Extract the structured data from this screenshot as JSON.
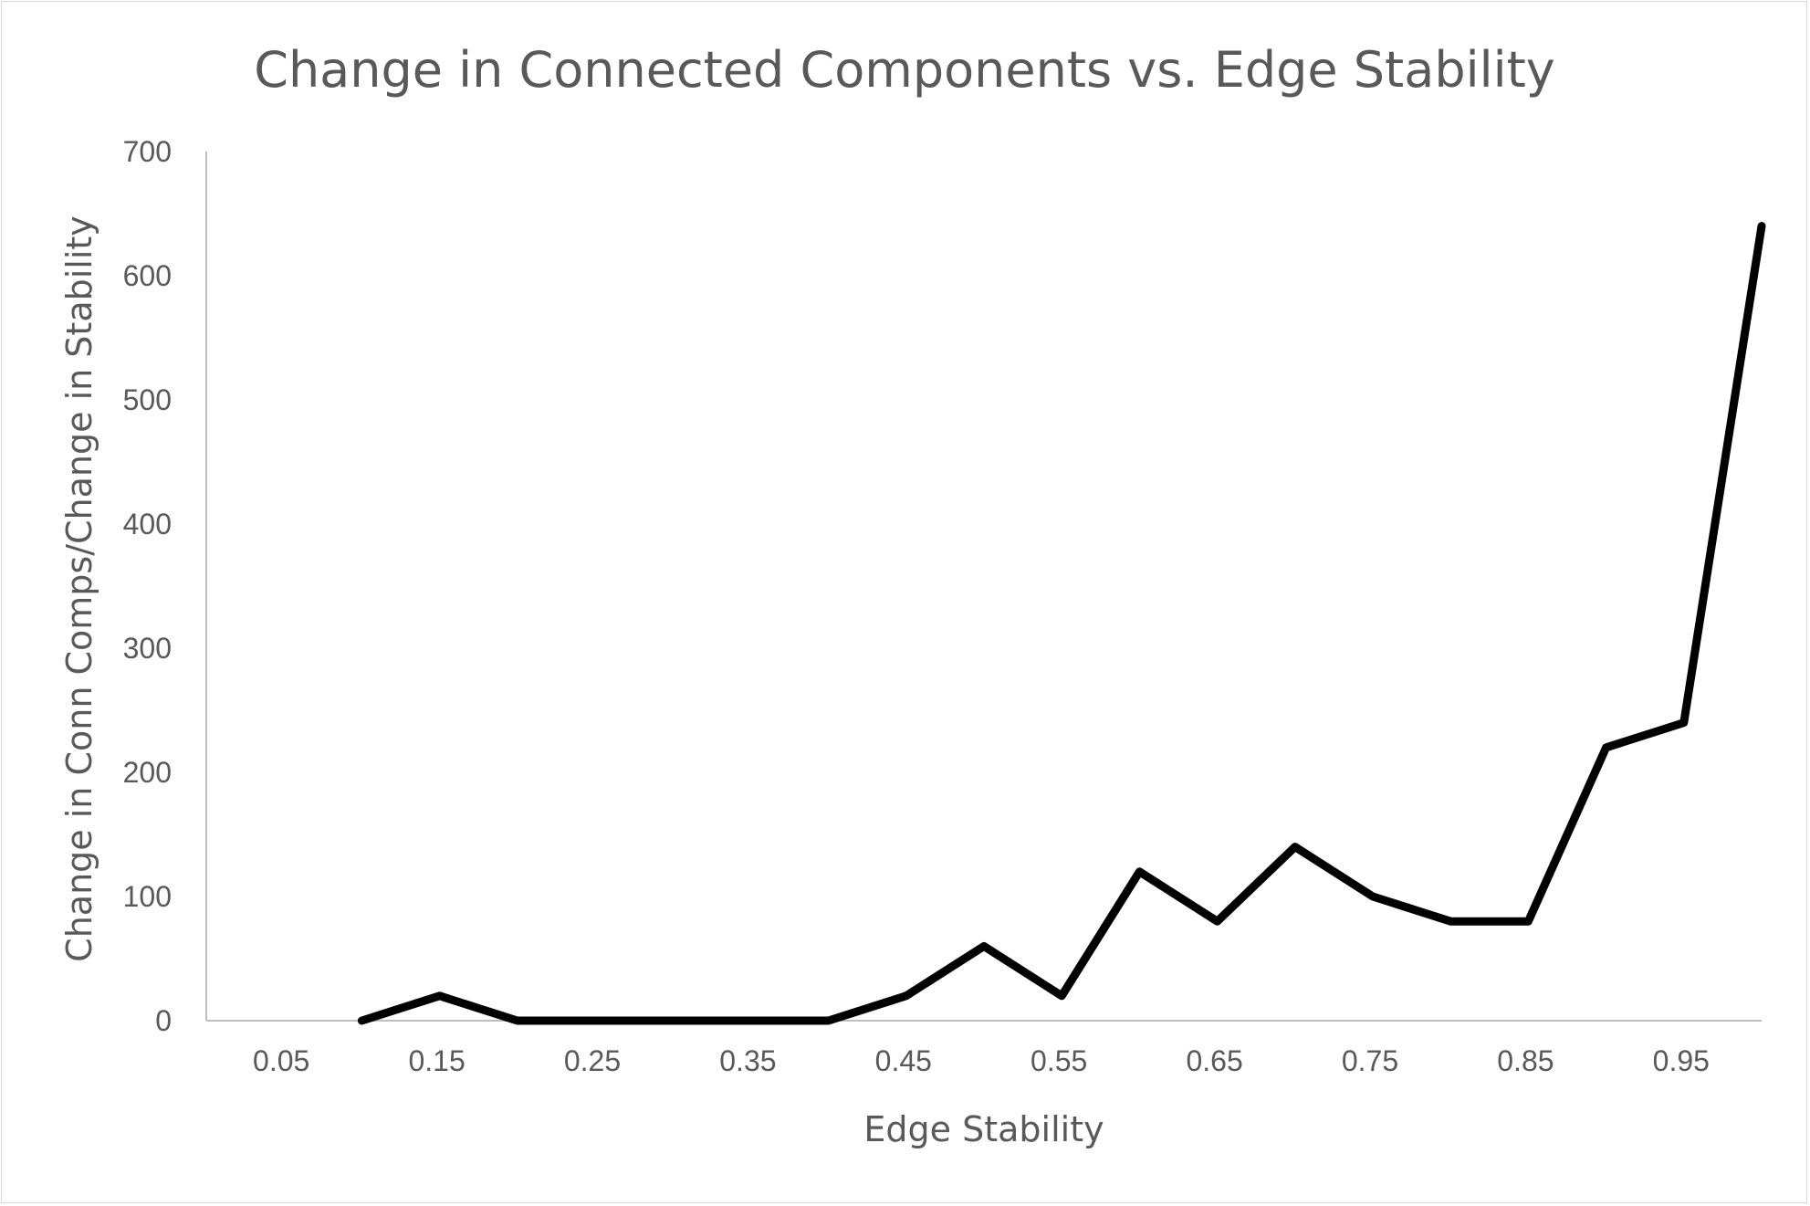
{
  "chart_data": {
    "type": "line",
    "title": "Change in Connected Components vs. Edge Stability",
    "xlabel": "Edge Stability",
    "ylabel": "Change in Conn Comps/Change in Stability",
    "x_tick_labels": [
      "0.05",
      "0.15",
      "0.25",
      "0.35",
      "0.45",
      "0.55",
      "0.65",
      "0.75",
      "0.85",
      "0.95"
    ],
    "y_tick_labels": [
      "0",
      "100",
      "200",
      "300",
      "400",
      "500",
      "600",
      "700"
    ],
    "ylim": [
      0,
      700
    ],
    "xlim": [
      0,
      1.0
    ],
    "grid": false,
    "legend": "none",
    "series": [
      {
        "color": "#000000",
        "x": [
          0.1,
          0.15,
          0.2,
          0.25,
          0.3,
          0.35,
          0.4,
          0.45,
          0.5,
          0.55,
          0.6,
          0.65,
          0.7,
          0.75,
          0.8,
          0.85,
          0.9,
          0.95,
          1.0
        ],
        "values": [
          0,
          20,
          0,
          0,
          0,
          0,
          0,
          20,
          60,
          20,
          120,
          80,
          140,
          100,
          80,
          80,
          220,
          240,
          640
        ]
      }
    ]
  }
}
